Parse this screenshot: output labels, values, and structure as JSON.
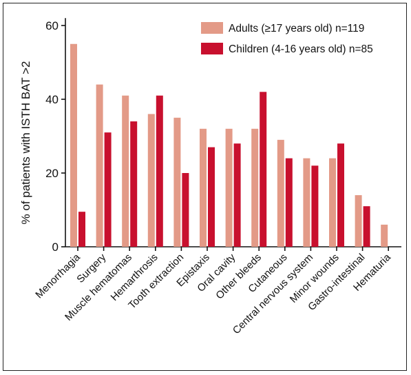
{
  "chart_data": {
    "type": "bar",
    "title": "",
    "xlabel": "",
    "ylabel": "% of patients with ISTH BAT >2",
    "ylim": [
      0,
      62
    ],
    "yticks": [
      0,
      20,
      40,
      60
    ],
    "grid": false,
    "legend_position": "top-right",
    "categories": [
      "Menorrhagia",
      "Surgery",
      "Muscle hematomas",
      "Hemarthrosis",
      "Tooth extraction",
      "Epistaxis",
      "Oral cavity",
      "Other bleeds",
      "Cutaneous",
      "Central nervous system",
      "Minor wounds",
      "Gastro-intestinal",
      "Hematuria"
    ],
    "series": [
      {
        "name": "Adults (≥17 years old) n=119",
        "color": "#e39a87",
        "values": [
          55,
          44,
          41,
          36,
          35,
          32,
          32,
          32,
          29,
          24,
          24,
          14,
          6
        ]
      },
      {
        "name": "Children (4-16 years old) n=85",
        "color": "#c8102e",
        "values": [
          9.5,
          31,
          34,
          41,
          20,
          27,
          28,
          42,
          24,
          22,
          28,
          11,
          0
        ]
      }
    ]
  }
}
